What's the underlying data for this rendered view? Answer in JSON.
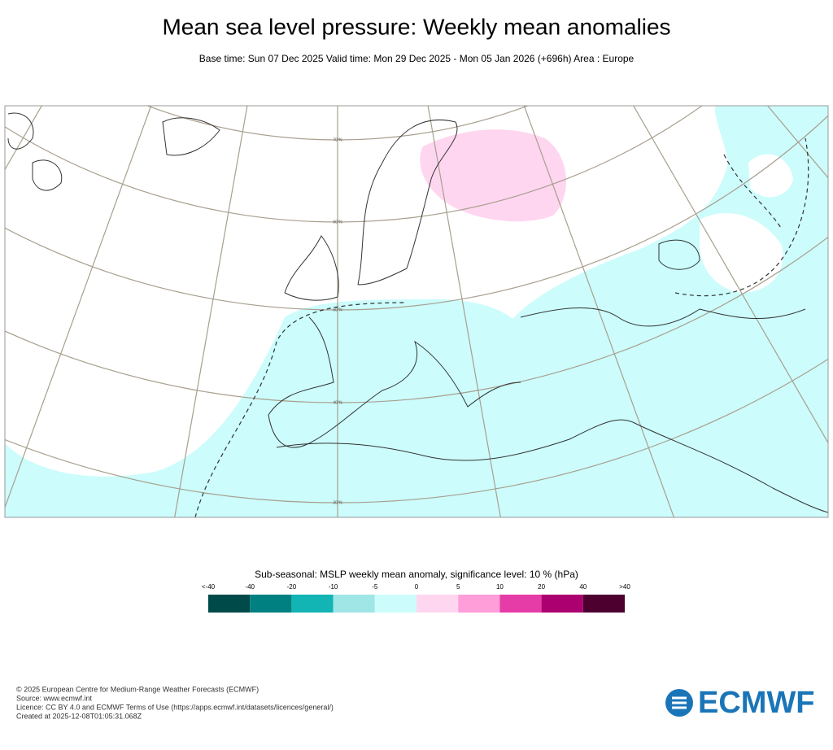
{
  "header": {
    "title": "Mean sea level pressure: Weekly mean anomalies",
    "subtitle": "Base time: Sun 07 Dec 2025 Valid time: Mon 29 Dec 2025 - Mon 05 Jan 2026 (+696h) Area : Europe"
  },
  "map": {
    "lat_labels": [
      "70°N",
      "60°N",
      "50°N",
      "40°N",
      "30°N"
    ]
  },
  "legend": {
    "title": "Sub-seasonal: MSLP weekly mean anomaly, significance level: 10 % (hPa)",
    "labels": [
      "<-40",
      "-40",
      "-20",
      "-10",
      "-5",
      "0",
      "5",
      "10",
      "20",
      "40",
      ">40"
    ],
    "colors": [
      "#004a4a",
      "#008080",
      "#12b4b4",
      "#a0e6e6",
      "#ccfcfc",
      "#ffd6f0",
      "#ff9ed8",
      "#e63ca8",
      "#ad0070",
      "#4d0030"
    ]
  },
  "footer": {
    "lines": [
      "© 2025 European Centre for Medium-Range Weather Forecasts (ECMWF)",
      "Source: www.ecmwf.int",
      "Licence: CC BY 4.0 and ECMWF Terms of Use (https://apps.ecmwf.int/datasets/licences/general/)",
      "Created at 2025-12-08T01:05:31.068Z"
    ],
    "logo": "ECMWF"
  }
}
